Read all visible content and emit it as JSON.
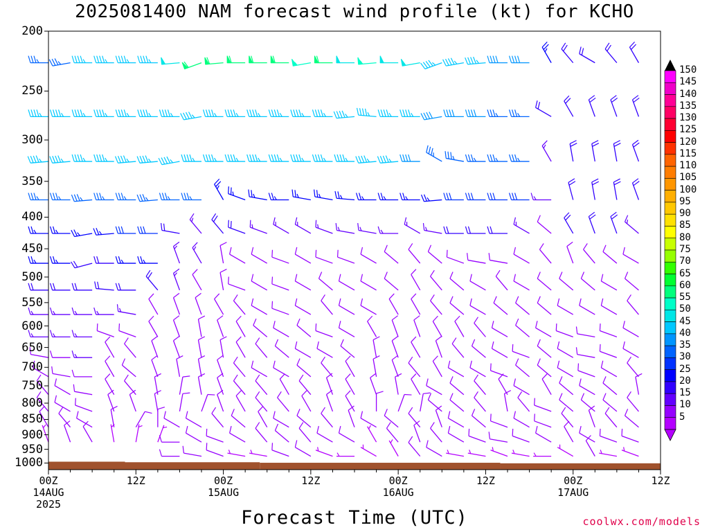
{
  "title": "2025081400 NAM forecast wind profile (kt) for KCHO",
  "credit": "coolwx.com/models",
  "chart_data": {
    "type": "wind_barbs",
    "title": "2025081400 NAM forecast wind profile (kt) for KCHO",
    "xlabel": "Forecast Time (UTC)",
    "ylabel": "",
    "y_scale": "log",
    "y_inverted": true,
    "ylim": [
      1025,
      200
    ],
    "y_ticks": [
      "200",
      "250",
      "300",
      "350",
      "400",
      "450",
      "500",
      "550",
      "600",
      "650",
      "700",
      "750",
      "800",
      "850",
      "900",
      "950",
      "1000"
    ],
    "xlim_hours": [
      0,
      84
    ],
    "x_ticks": [
      {
        "hour": 0,
        "line1": "00Z",
        "line2": "14AUG",
        "line3": "2025"
      },
      {
        "hour": 12,
        "line1": "12Z",
        "line2": "",
        "line3": ""
      },
      {
        "hour": 24,
        "line1": "00Z",
        "line2": "15AUG",
        "line3": ""
      },
      {
        "hour": 36,
        "line1": "12Z",
        "line2": "",
        "line3": ""
      },
      {
        "hour": 48,
        "line1": "00Z",
        "line2": "16AUG",
        "line3": ""
      },
      {
        "hour": 60,
        "line1": "12Z",
        "line2": "",
        "line3": ""
      },
      {
        "hour": 72,
        "line1": "00Z",
        "line2": "17AUG",
        "line3": ""
      },
      {
        "hour": 84,
        "line1": "12Z",
        "line2": "",
        "line3": ""
      }
    ],
    "hour_step": 3,
    "pressure_levels": [
      225,
      275,
      325,
      375,
      425,
      475,
      525,
      575,
      625,
      675,
      725,
      775,
      825,
      875,
      925,
      975
    ],
    "wind_dir_deg": [
      [
        270,
        260,
        270,
        270,
        270,
        270,
        265,
        250,
        265,
        270,
        270,
        270,
        260,
        270,
        270,
        265,
        270,
        260,
        250,
        260,
        265,
        270,
        270,
        330,
        320,
        300,
        320,
        330
      ],
      [
        270,
        270,
        270,
        270,
        270,
        270,
        270,
        260,
        270,
        270,
        270,
        270,
        270,
        270,
        265,
        275,
        270,
        270,
        260,
        270,
        270,
        270,
        270,
        300,
        330,
        340,
        340,
        340
      ],
      [
        265,
        265,
        270,
        270,
        265,
        265,
        260,
        270,
        270,
        270,
        270,
        270,
        270,
        270,
        270,
        265,
        265,
        270,
        300,
        280,
        270,
        270,
        270,
        330,
        350,
        350,
        350,
        340
      ],
      [
        270,
        270,
        265,
        270,
        270,
        265,
        270,
        270,
        330,
        290,
        280,
        270,
        280,
        280,
        275,
        270,
        270,
        270,
        265,
        270,
        270,
        270,
        270,
        270,
        345,
        350,
        350,
        340
      ],
      [
        270,
        270,
        260,
        265,
        270,
        270,
        280,
        320,
        320,
        290,
        290,
        300,
        300,
        290,
        280,
        280,
        270,
        300,
        280,
        270,
        270,
        270,
        300,
        310,
        330,
        340,
        340,
        310
      ],
      [
        270,
        270,
        255,
        270,
        270,
        270,
        340,
        330,
        350,
        300,
        300,
        290,
        300,
        290,
        290,
        300,
        310,
        320,
        310,
        290,
        280,
        280,
        300,
        320,
        340,
        320,
        310,
        300
      ],
      [
        270,
        270,
        270,
        275,
        270,
        320,
        340,
        330,
        350,
        290,
        300,
        290,
        300,
        310,
        300,
        300,
        310,
        330,
        320,
        310,
        300,
        320,
        300,
        310,
        310,
        310,
        300,
        310
      ],
      [
        270,
        270,
        270,
        270,
        280,
        330,
        340,
        340,
        330,
        320,
        300,
        290,
        300,
        320,
        300,
        300,
        330,
        330,
        320,
        310,
        300,
        310,
        310,
        310,
        300,
        300,
        300,
        320
      ],
      [
        270,
        270,
        270,
        290,
        290,
        330,
        340,
        350,
        340,
        330,
        310,
        300,
        310,
        290,
        300,
        330,
        340,
        340,
        330,
        330,
        320,
        300,
        310,
        300,
        290,
        280,
        290,
        300
      ],
      [
        280,
        270,
        270,
        330,
        320,
        340,
        340,
        350,
        350,
        330,
        320,
        310,
        300,
        300,
        310,
        350,
        340,
        330,
        340,
        320,
        310,
        300,
        290,
        310,
        300,
        280,
        290,
        300
      ],
      [
        300,
        280,
        270,
        330,
        310,
        340,
        350,
        350,
        340,
        320,
        300,
        300,
        310,
        320,
        330,
        350,
        340,
        320,
        330,
        300,
        300,
        290,
        310,
        310,
        300,
        290,
        300,
        320
      ],
      [
        320,
        300,
        280,
        330,
        320,
        350,
        10,
        350,
        340,
        320,
        320,
        330,
        320,
        340,
        330,
        340,
        350,
        330,
        300,
        310,
        320,
        330,
        300,
        330,
        310,
        300,
        310,
        350
      ],
      [
        320,
        300,
        290,
        340,
        340,
        350,
        10,
        20,
        340,
        330,
        320,
        320,
        330,
        340,
        330,
        0,
        20,
        10,
        310,
        310,
        320,
        350,
        320,
        290,
        310,
        310,
        310,
        320
      ],
      [
        330,
        320,
        300,
        350,
        30,
        0,
        300,
        300,
        320,
        310,
        330,
        300,
        310,
        320,
        340,
        300,
        310,
        320,
        340,
        300,
        310,
        290,
        300,
        290,
        320,
        340,
        320,
        310
      ],
      [
        340,
        340,
        330,
        350,
        10,
        20,
        270,
        300,
        290,
        300,
        320,
        310,
        320,
        300,
        300,
        330,
        320,
        340,
        320,
        300,
        290,
        280,
        290,
        300,
        330,
        300,
        290,
        290
      ],
      [
        0,
        0,
        0,
        0,
        0,
        0,
        270,
        280,
        290,
        280,
        280,
        290,
        300,
        290,
        270,
        300,
        330,
        320,
        300,
        280,
        280,
        290,
        280,
        270,
        300,
        330,
        280,
        290
      ]
    ],
    "wind_speed_kt": [
      [
        35,
        35,
        45,
        45,
        45,
        45,
        50,
        60,
        60,
        60,
        60,
        60,
        55,
        60,
        50,
        55,
        50,
        50,
        45,
        45,
        45,
        40,
        40,
        25,
        20,
        20,
        20,
        20
      ],
      [
        45,
        45,
        45,
        45,
        45,
        45,
        45,
        45,
        45,
        45,
        45,
        45,
        45,
        45,
        45,
        45,
        45,
        45,
        40,
        40,
        40,
        35,
        35,
        20,
        20,
        20,
        20,
        20
      ],
      [
        45,
        45,
        45,
        45,
        45,
        45,
        45,
        45,
        45,
        45,
        45,
        45,
        45,
        45,
        45,
        45,
        45,
        40,
        35,
        35,
        35,
        35,
        35,
        15,
        20,
        20,
        20,
        20
      ],
      [
        35,
        35,
        35,
        35,
        35,
        35,
        35,
        35,
        25,
        25,
        25,
        25,
        25,
        25,
        25,
        25,
        25,
        25,
        25,
        30,
        30,
        30,
        30,
        15,
        20,
        20,
        20,
        20
      ],
      [
        25,
        25,
        25,
        25,
        30,
        30,
        20,
        15,
        20,
        20,
        15,
        15,
        15,
        15,
        15,
        15,
        15,
        15,
        15,
        20,
        20,
        20,
        15,
        10,
        20,
        20,
        20,
        15
      ],
      [
        25,
        25,
        20,
        20,
        25,
        25,
        15,
        15,
        10,
        10,
        10,
        10,
        10,
        10,
        10,
        10,
        10,
        10,
        10,
        10,
        10,
        10,
        10,
        10,
        10,
        10,
        10,
        10
      ],
      [
        20,
        20,
        20,
        20,
        20,
        20,
        15,
        10,
        10,
        10,
        10,
        10,
        10,
        10,
        10,
        10,
        10,
        10,
        10,
        10,
        10,
        10,
        10,
        10,
        10,
        10,
        10,
        10
      ],
      [
        15,
        15,
        15,
        15,
        15,
        10,
        10,
        10,
        10,
        10,
        10,
        10,
        10,
        10,
        10,
        10,
        10,
        10,
        10,
        10,
        10,
        10,
        10,
        10,
        10,
        10,
        10,
        10
      ],
      [
        15,
        15,
        15,
        10,
        10,
        10,
        10,
        10,
        10,
        10,
        10,
        10,
        10,
        10,
        10,
        10,
        10,
        10,
        10,
        10,
        10,
        10,
        10,
        10,
        10,
        10,
        10,
        10
      ],
      [
        10,
        10,
        15,
        10,
        10,
        10,
        10,
        10,
        10,
        10,
        10,
        10,
        10,
        10,
        10,
        10,
        10,
        10,
        10,
        10,
        10,
        10,
        10,
        10,
        10,
        10,
        10,
        10
      ],
      [
        10,
        10,
        10,
        10,
        10,
        10,
        10,
        10,
        10,
        10,
        10,
        10,
        10,
        10,
        10,
        10,
        10,
        10,
        10,
        10,
        10,
        10,
        10,
        10,
        10,
        10,
        10,
        10
      ],
      [
        10,
        10,
        10,
        10,
        10,
        10,
        10,
        10,
        10,
        10,
        10,
        10,
        10,
        10,
        10,
        10,
        10,
        10,
        10,
        10,
        10,
        10,
        10,
        10,
        10,
        10,
        10,
        10
      ],
      [
        10,
        10,
        10,
        10,
        10,
        10,
        10,
        10,
        10,
        10,
        10,
        10,
        10,
        10,
        10,
        10,
        10,
        10,
        10,
        10,
        10,
        10,
        10,
        10,
        10,
        10,
        10,
        10
      ],
      [
        10,
        10,
        10,
        10,
        10,
        10,
        10,
        10,
        10,
        10,
        10,
        10,
        10,
        10,
        10,
        10,
        10,
        10,
        10,
        10,
        10,
        10,
        10,
        10,
        10,
        10,
        10,
        10
      ],
      [
        5,
        10,
        10,
        5,
        5,
        5,
        10,
        10,
        10,
        10,
        10,
        10,
        10,
        10,
        10,
        5,
        10,
        10,
        10,
        10,
        10,
        10,
        10,
        10,
        10,
        10,
        10,
        10
      ],
      [
        0,
        0,
        0,
        0,
        0,
        0,
        10,
        10,
        10,
        5,
        5,
        10,
        10,
        5,
        5,
        5,
        5,
        10,
        10,
        5,
        5,
        5,
        5,
        5,
        5,
        10,
        5,
        5
      ]
    ],
    "surface_pressure_by_hour": [
      {
        "from": 0,
        "to": 10.5,
        "p": 995
      },
      {
        "from": 10.5,
        "to": 29,
        "p": 997
      },
      {
        "from": 29,
        "to": 62,
        "p": 999
      },
      {
        "from": 62,
        "to": 84,
        "p": 1001
      }
    ],
    "surface_color": "#a0522d",
    "colorbar": {
      "labels": [
        "150",
        "145",
        "140",
        "135",
        "130",
        "125",
        "120",
        "115",
        "110",
        "105",
        "100",
        "95",
        "90",
        "85",
        "80",
        "75",
        "70",
        "65",
        "60",
        "55",
        "50",
        "45",
        "40",
        "35",
        "30",
        "25",
        "20",
        "15",
        "10",
        "5"
      ],
      "colors": [
        "#ff00ff",
        "#f000c8",
        "#ff0096",
        "#ff0064",
        "#ff0032",
        "#ff0000",
        "#ff3200",
        "#ff6400",
        "#ff7d00",
        "#ff9600",
        "#ffaf00",
        "#ffc800",
        "#ffe100",
        "#ffff00",
        "#c8ff00",
        "#96ff00",
        "#32ff00",
        "#00ff32",
        "#00ff7d",
        "#00ffc8",
        "#00e6e6",
        "#00c8ff",
        "#0096ff",
        "#0064ff",
        "#0032ff",
        "#0000ff",
        "#3200ff",
        "#6400ff",
        "#9600ff",
        "#b400ff"
      ]
    }
  }
}
